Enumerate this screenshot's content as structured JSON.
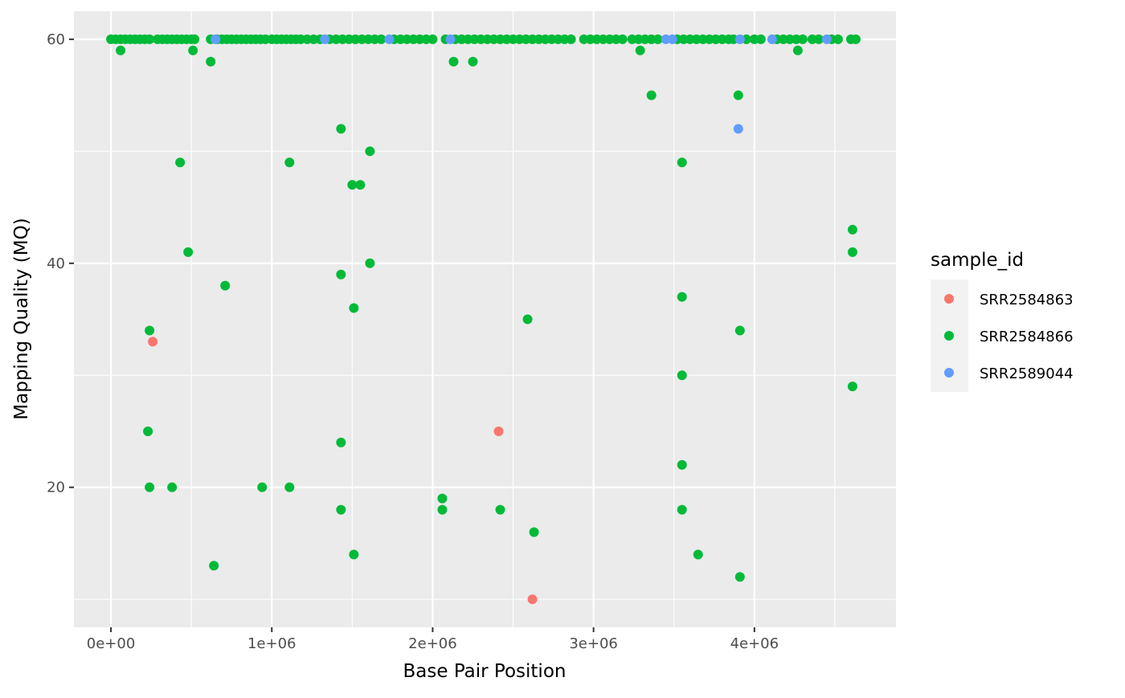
{
  "chart_data": {
    "type": "scatter",
    "title": "",
    "xlabel": "Base Pair Position",
    "ylabel": "Mapping Quality (MQ)",
    "xlim": [
      -230000,
      4880000
    ],
    "ylim": [
      7.5,
      62.5
    ],
    "x_ticks": [
      0,
      1000000,
      2000000,
      3000000,
      4000000
    ],
    "x_tick_labels": [
      "0e+00",
      "1e+06",
      "2e+06",
      "3e+06",
      "4e+06"
    ],
    "y_ticks": [
      20,
      40,
      60
    ],
    "y_tick_labels": [
      "20",
      "40",
      "60"
    ],
    "grid": true,
    "panel_background": "#ebebeb",
    "legend": {
      "title": "sample_id",
      "position": "right"
    },
    "series": [
      {
        "name": "SRR2584863",
        "color": "#F8766D",
        "points": [
          [
            260000,
            33
          ],
          [
            2410000,
            25
          ],
          [
            2620000,
            10
          ]
        ]
      },
      {
        "name": "SRR2584866",
        "color": "#00BA38",
        "points": [
          [
            0,
            60
          ],
          [
            30000,
            60
          ],
          [
            60000,
            60
          ],
          [
            90000,
            60
          ],
          [
            120000,
            60
          ],
          [
            150000,
            60
          ],
          [
            180000,
            60
          ],
          [
            210000,
            60
          ],
          [
            240000,
            60
          ],
          [
            290000,
            60
          ],
          [
            320000,
            60
          ],
          [
            350000,
            60
          ],
          [
            380000,
            60
          ],
          [
            410000,
            60
          ],
          [
            440000,
            60
          ],
          [
            470000,
            60
          ],
          [
            500000,
            60
          ],
          [
            520000,
            60
          ],
          [
            620000,
            60
          ],
          [
            660000,
            60
          ],
          [
            690000,
            60
          ],
          [
            720000,
            60
          ],
          [
            750000,
            60
          ],
          [
            780000,
            60
          ],
          [
            810000,
            60
          ],
          [
            840000,
            60
          ],
          [
            870000,
            60
          ],
          [
            900000,
            60
          ],
          [
            930000,
            60
          ],
          [
            960000,
            60
          ],
          [
            1000000,
            60
          ],
          [
            1030000,
            60
          ],
          [
            1060000,
            60
          ],
          [
            1090000,
            60
          ],
          [
            1120000,
            60
          ],
          [
            1150000,
            60
          ],
          [
            1180000,
            60
          ],
          [
            1220000,
            60
          ],
          [
            1260000,
            60
          ],
          [
            1300000,
            60
          ],
          [
            1360000,
            60
          ],
          [
            1400000,
            60
          ],
          [
            1440000,
            60
          ],
          [
            1480000,
            60
          ],
          [
            1520000,
            60
          ],
          [
            1560000,
            60
          ],
          [
            1600000,
            60
          ],
          [
            1640000,
            60
          ],
          [
            1680000,
            60
          ],
          [
            1760000,
            60
          ],
          [
            1800000,
            60
          ],
          [
            1840000,
            60
          ],
          [
            1880000,
            60
          ],
          [
            1920000,
            60
          ],
          [
            1960000,
            60
          ],
          [
            2000000,
            60
          ],
          [
            2080000,
            60
          ],
          [
            2140000,
            60
          ],
          [
            2180000,
            60
          ],
          [
            2220000,
            60
          ],
          [
            2260000,
            60
          ],
          [
            2300000,
            60
          ],
          [
            2340000,
            60
          ],
          [
            2380000,
            60
          ],
          [
            2420000,
            60
          ],
          [
            2460000,
            60
          ],
          [
            2500000,
            60
          ],
          [
            2540000,
            60
          ],
          [
            2580000,
            60
          ],
          [
            2620000,
            60
          ],
          [
            2660000,
            60
          ],
          [
            2700000,
            60
          ],
          [
            2740000,
            60
          ],
          [
            2780000,
            60
          ],
          [
            2820000,
            60
          ],
          [
            2860000,
            60
          ],
          [
            2940000,
            60
          ],
          [
            2980000,
            60
          ],
          [
            3020000,
            60
          ],
          [
            3060000,
            60
          ],
          [
            3100000,
            60
          ],
          [
            3140000,
            60
          ],
          [
            3180000,
            60
          ],
          [
            3240000,
            60
          ],
          [
            3280000,
            60
          ],
          [
            3320000,
            60
          ],
          [
            3360000,
            60
          ],
          [
            3400000,
            60
          ],
          [
            3520000,
            60
          ],
          [
            3560000,
            60
          ],
          [
            3600000,
            60
          ],
          [
            3640000,
            60
          ],
          [
            3680000,
            60
          ],
          [
            3720000,
            60
          ],
          [
            3760000,
            60
          ],
          [
            3800000,
            60
          ],
          [
            3840000,
            60
          ],
          [
            3870000,
            60
          ],
          [
            3950000,
            60
          ],
          [
            4000000,
            60
          ],
          [
            4040000,
            60
          ],
          [
            4140000,
            60
          ],
          [
            4180000,
            60
          ],
          [
            4220000,
            60
          ],
          [
            4260000,
            60
          ],
          [
            4300000,
            60
          ],
          [
            4360000,
            60
          ],
          [
            4400000,
            60
          ],
          [
            4480000,
            60
          ],
          [
            4520000,
            60
          ],
          [
            4600000,
            60
          ],
          [
            4630000,
            60
          ],
          [
            60000,
            59
          ],
          [
            510000,
            59
          ],
          [
            3290000,
            59
          ],
          [
            4270000,
            59
          ],
          [
            620000,
            58
          ],
          [
            2130000,
            58
          ],
          [
            2250000,
            58
          ],
          [
            3360000,
            55
          ],
          [
            3900000,
            55
          ],
          [
            1430000,
            52
          ],
          [
            1610000,
            50
          ],
          [
            430000,
            49
          ],
          [
            1110000,
            49
          ],
          [
            3550000,
            49
          ],
          [
            1500000,
            47
          ],
          [
            1550000,
            47
          ],
          [
            4610000,
            43
          ],
          [
            480000,
            41
          ],
          [
            4610000,
            41
          ],
          [
            1610000,
            40
          ],
          [
            1430000,
            39
          ],
          [
            710000,
            38
          ],
          [
            3550000,
            37
          ],
          [
            1510000,
            36
          ],
          [
            2590000,
            35
          ],
          [
            240000,
            34
          ],
          [
            3910000,
            34
          ],
          [
            3550000,
            30
          ],
          [
            4610000,
            29
          ],
          [
            230000,
            25
          ],
          [
            1430000,
            24
          ],
          [
            3550000,
            22
          ],
          [
            240000,
            20
          ],
          [
            380000,
            20
          ],
          [
            940000,
            20
          ],
          [
            1110000,
            20
          ],
          [
            2060000,
            19
          ],
          [
            1430000,
            18
          ],
          [
            2060000,
            18
          ],
          [
            2420000,
            18
          ],
          [
            3550000,
            18
          ],
          [
            2630000,
            16
          ],
          [
            1510000,
            14
          ],
          [
            3650000,
            14
          ],
          [
            640000,
            13
          ],
          [
            3910000,
            12
          ]
        ]
      },
      {
        "name": "SRR2589044",
        "color": "#619CFF",
        "points": [
          [
            650000,
            60
          ],
          [
            1330000,
            60
          ],
          [
            1730000,
            60
          ],
          [
            2110000,
            60
          ],
          [
            3450000,
            60
          ],
          [
            3490000,
            60
          ],
          [
            3910000,
            60
          ],
          [
            4110000,
            60
          ],
          [
            4450000,
            60
          ],
          [
            3900000,
            52
          ]
        ]
      }
    ]
  }
}
